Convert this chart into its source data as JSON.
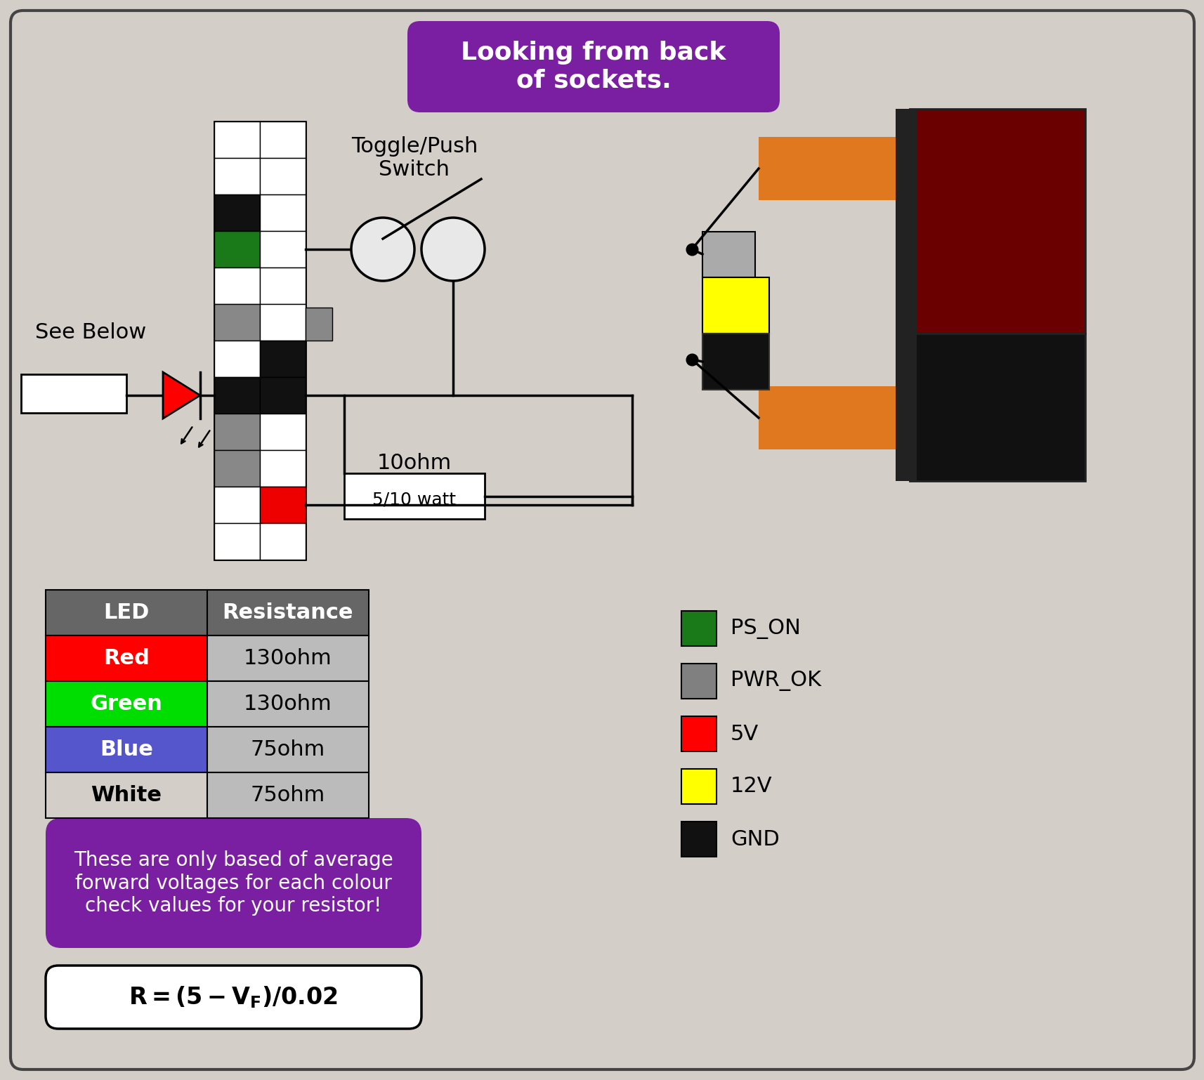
{
  "bg_color": "#D4CEC9",
  "border_color": "#444444",
  "title_text": "Looking from back\nof sockets.",
  "title_bg": "#7B1FA2",
  "title_fg": "white",
  "legend_items": [
    {
      "color": "#1A7A1A",
      "label": "PS_ON"
    },
    {
      "color": "#808080",
      "label": "PWR_OK"
    },
    {
      "color": "#FF0000",
      "label": "5V"
    },
    {
      "color": "#FFFF00",
      "label": "12V"
    },
    {
      "color": "#111111",
      "label": "GND"
    }
  ],
  "table_headers": [
    "LED",
    "Resistance"
  ],
  "table_rows": [
    {
      "color": "#FF0000",
      "text_color": "white",
      "led": "Red",
      "resistance": "130ohm"
    },
    {
      "color": "#00DD00",
      "text_color": "white",
      "led": "Green",
      "resistance": "130ohm"
    },
    {
      "color": "#5555CC",
      "text_color": "white",
      "led": "Blue",
      "resistance": "75ohm"
    },
    {
      "color": "#D4CEC9",
      "text_color": "black",
      "led": "White",
      "resistance": "75ohm"
    }
  ],
  "note_text": "These are only based of average\nforward voltages for each colour\ncheck values for your resistor!",
  "pin_colors_left": [
    "white",
    "white",
    "black",
    "green",
    "white",
    "gray",
    "white",
    "black",
    "gray",
    "gray",
    "white",
    "white"
  ],
  "pin_colors_right": [
    "white",
    "white",
    "white",
    "white",
    "white",
    "white",
    "black",
    "black",
    "white",
    "white",
    "red",
    "white"
  ]
}
